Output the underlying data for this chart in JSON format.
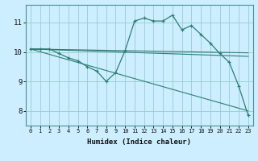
{
  "title": "",
  "xlabel": "Humidex (Indice chaleur)",
  "background_color": "#cceeff",
  "grid_color": "#99cccc",
  "line_color": "#2e7d72",
  "xlim": [
    -0.5,
    23.5
  ],
  "ylim": [
    7.5,
    11.6
  ],
  "yticks": [
    8,
    9,
    10,
    11
  ],
  "xticks": [
    0,
    1,
    2,
    3,
    4,
    5,
    6,
    7,
    8,
    9,
    10,
    11,
    12,
    13,
    14,
    15,
    16,
    17,
    18,
    19,
    20,
    21,
    22,
    23
  ],
  "series": {
    "line1": {
      "x": [
        0,
        1,
        2,
        3,
        4,
        5,
        6,
        7,
        8,
        9,
        10,
        11,
        12,
        13,
        14,
        15,
        16,
        17,
        18,
        19,
        20,
        21,
        22,
        23
      ],
      "y": [
        10.1,
        10.1,
        10.1,
        9.95,
        9.8,
        9.7,
        9.5,
        9.35,
        9.0,
        9.3,
        10.05,
        11.05,
        11.15,
        11.05,
        11.05,
        11.25,
        10.75,
        10.9,
        10.6,
        10.3,
        9.95,
        9.65,
        8.85,
        7.85
      ]
    },
    "line2": {
      "x": [
        0,
        23
      ],
      "y": [
        10.1,
        9.97
      ]
    },
    "line3": {
      "x": [
        0,
        23
      ],
      "y": [
        10.1,
        9.85
      ]
    },
    "line4": {
      "x": [
        0,
        23
      ],
      "y": [
        10.1,
        8.0
      ]
    }
  },
  "xlabel_fontsize": 6.5,
  "xtick_fontsize": 5.0,
  "ytick_fontsize": 6.5
}
